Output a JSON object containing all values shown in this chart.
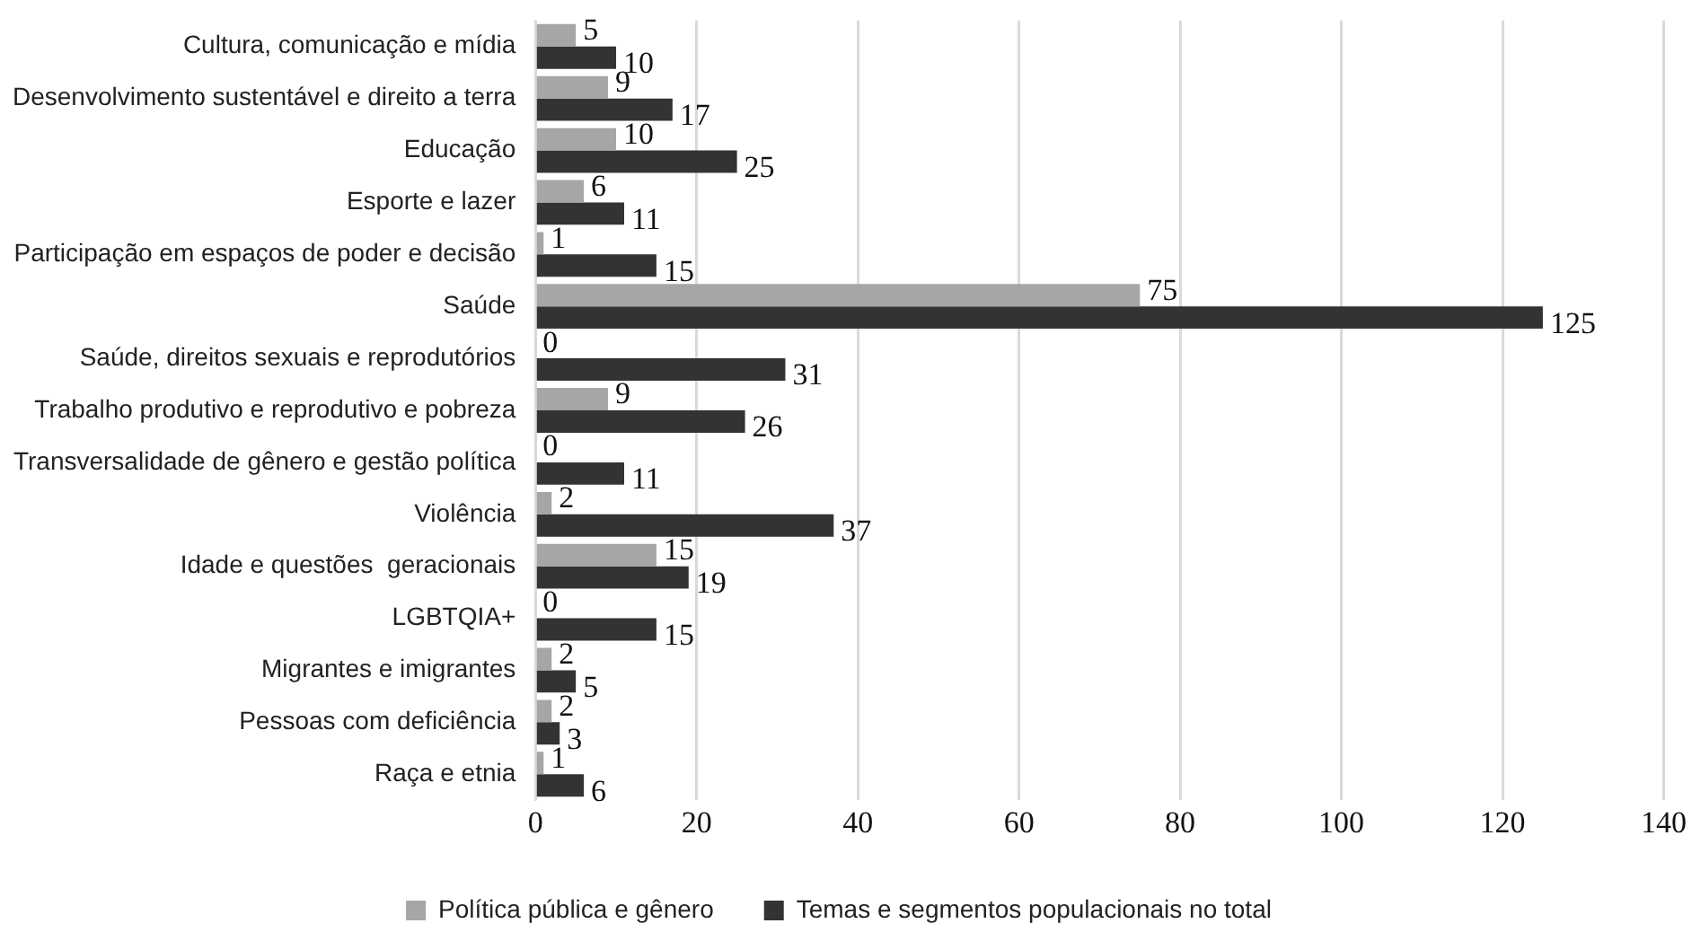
{
  "chart_data": {
    "type": "bar",
    "orientation": "horizontal",
    "categories": [
      "Cultura, comunicação e mídia",
      "Desenvolvimento sustentável e direito a terra",
      "Educação",
      "Esporte e lazer",
      "Participação em espaços de poder e decisão",
      "Saúde",
      "Saúde, direitos sexuais e reprodutórios",
      "Trabalho produtivo e reprodutivo e pobreza",
      "Transversalidade de gênero e gestão política",
      "Violência",
      "Idade e questões  geracionais",
      "LGBTQIA+",
      "Migrantes e imigrantes",
      "Pessoas com deficiência",
      "Raça e etnia"
    ],
    "series": [
      {
        "name": "Política pública e gênero",
        "color": "#a6a6a6",
        "values": [
          5,
          9,
          10,
          6,
          1,
          75,
          0,
          9,
          0,
          2,
          15,
          0,
          2,
          2,
          1
        ]
      },
      {
        "name": "Temas e segmentos populacionais no total",
        "color": "#333333",
        "values": [
          10,
          17,
          25,
          11,
          15,
          125,
          31,
          26,
          11,
          37,
          19,
          15,
          5,
          3,
          6
        ]
      }
    ],
    "xlim": [
      0,
      140
    ],
    "xticks": [
      0,
      20,
      40,
      60,
      80,
      100,
      120,
      140
    ],
    "grid": "x",
    "legend": "bottom",
    "data_labels": true
  }
}
